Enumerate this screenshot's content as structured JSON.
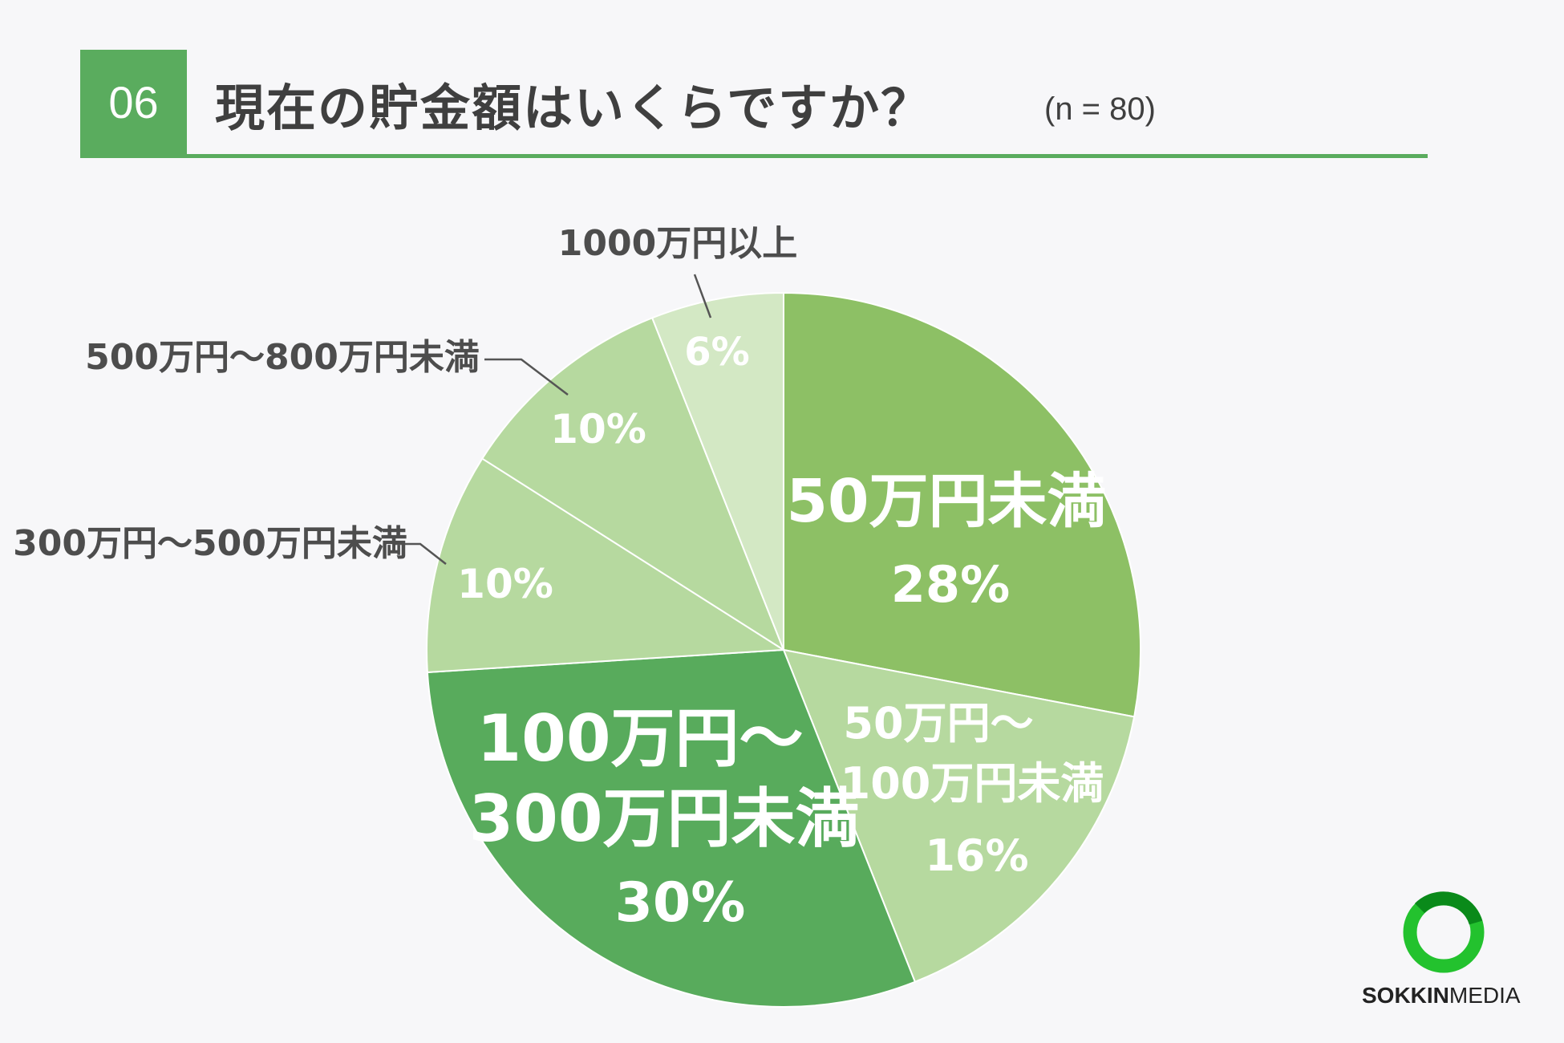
{
  "header": {
    "number": "06",
    "title": "現在の貯金額はいくらですか？",
    "sample": "(n = 80)"
  },
  "chart_data": {
    "type": "pie",
    "start": "12 o'clock",
    "direction": "clockwise",
    "slices": [
      {
        "label": "50万円未満",
        "value": 28,
        "pct": "28%",
        "color": "#8dc065",
        "label_inside": true
      },
      {
        "label": "50万円～100万円未満",
        "value": 16,
        "pct": "16%",
        "color": "#b6d99f",
        "label_inside": true
      },
      {
        "label": "100万円～300万円未満",
        "value": 30,
        "pct": "30%",
        "color": "#58ab5c",
        "label_inside": true
      },
      {
        "label": "300万円～500万円未満",
        "value": 10,
        "pct": "10%",
        "color": "#b6d99f",
        "label_inside": false
      },
      {
        "label": "500万円～800万円未満",
        "value": 10,
        "pct": "10%",
        "color": "#b6d99f",
        "label_inside": false
      },
      {
        "label": "1000万円以上",
        "value": 6,
        "pct": "6%",
        "color": "#d3e8c4",
        "label_inside": false
      }
    ]
  },
  "logo": {
    "text_bold": "SOKKIN",
    "text_regular": "MEDIA",
    "colors": [
      "#23c22e",
      "#0a8a1a"
    ]
  }
}
